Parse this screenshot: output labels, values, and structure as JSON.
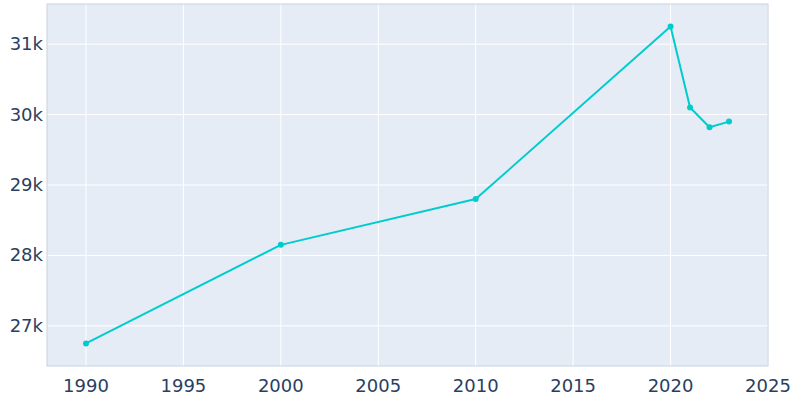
{
  "chart_data": {
    "type": "line",
    "x": [
      1990,
      2000,
      2010,
      2020,
      2021,
      2022,
      2023
    ],
    "values": [
      26750,
      28150,
      28800,
      31250,
      30100,
      29820,
      29900
    ],
    "color": "#00cccc",
    "marker": "circle",
    "xlim": [
      1988,
      2025
    ],
    "xticks": [
      1990,
      1995,
      2000,
      2005,
      2010,
      2015,
      2020,
      2025
    ],
    "ylim": [
      26430,
      31570
    ],
    "yticks": [
      {
        "value": 27000,
        "label": "27k"
      },
      {
        "value": 28000,
        "label": "28k"
      },
      {
        "value": 29000,
        "label": "29k"
      },
      {
        "value": 30000,
        "label": "30k"
      },
      {
        "value": 31000,
        "label": "31k"
      }
    ],
    "grid": true
  }
}
